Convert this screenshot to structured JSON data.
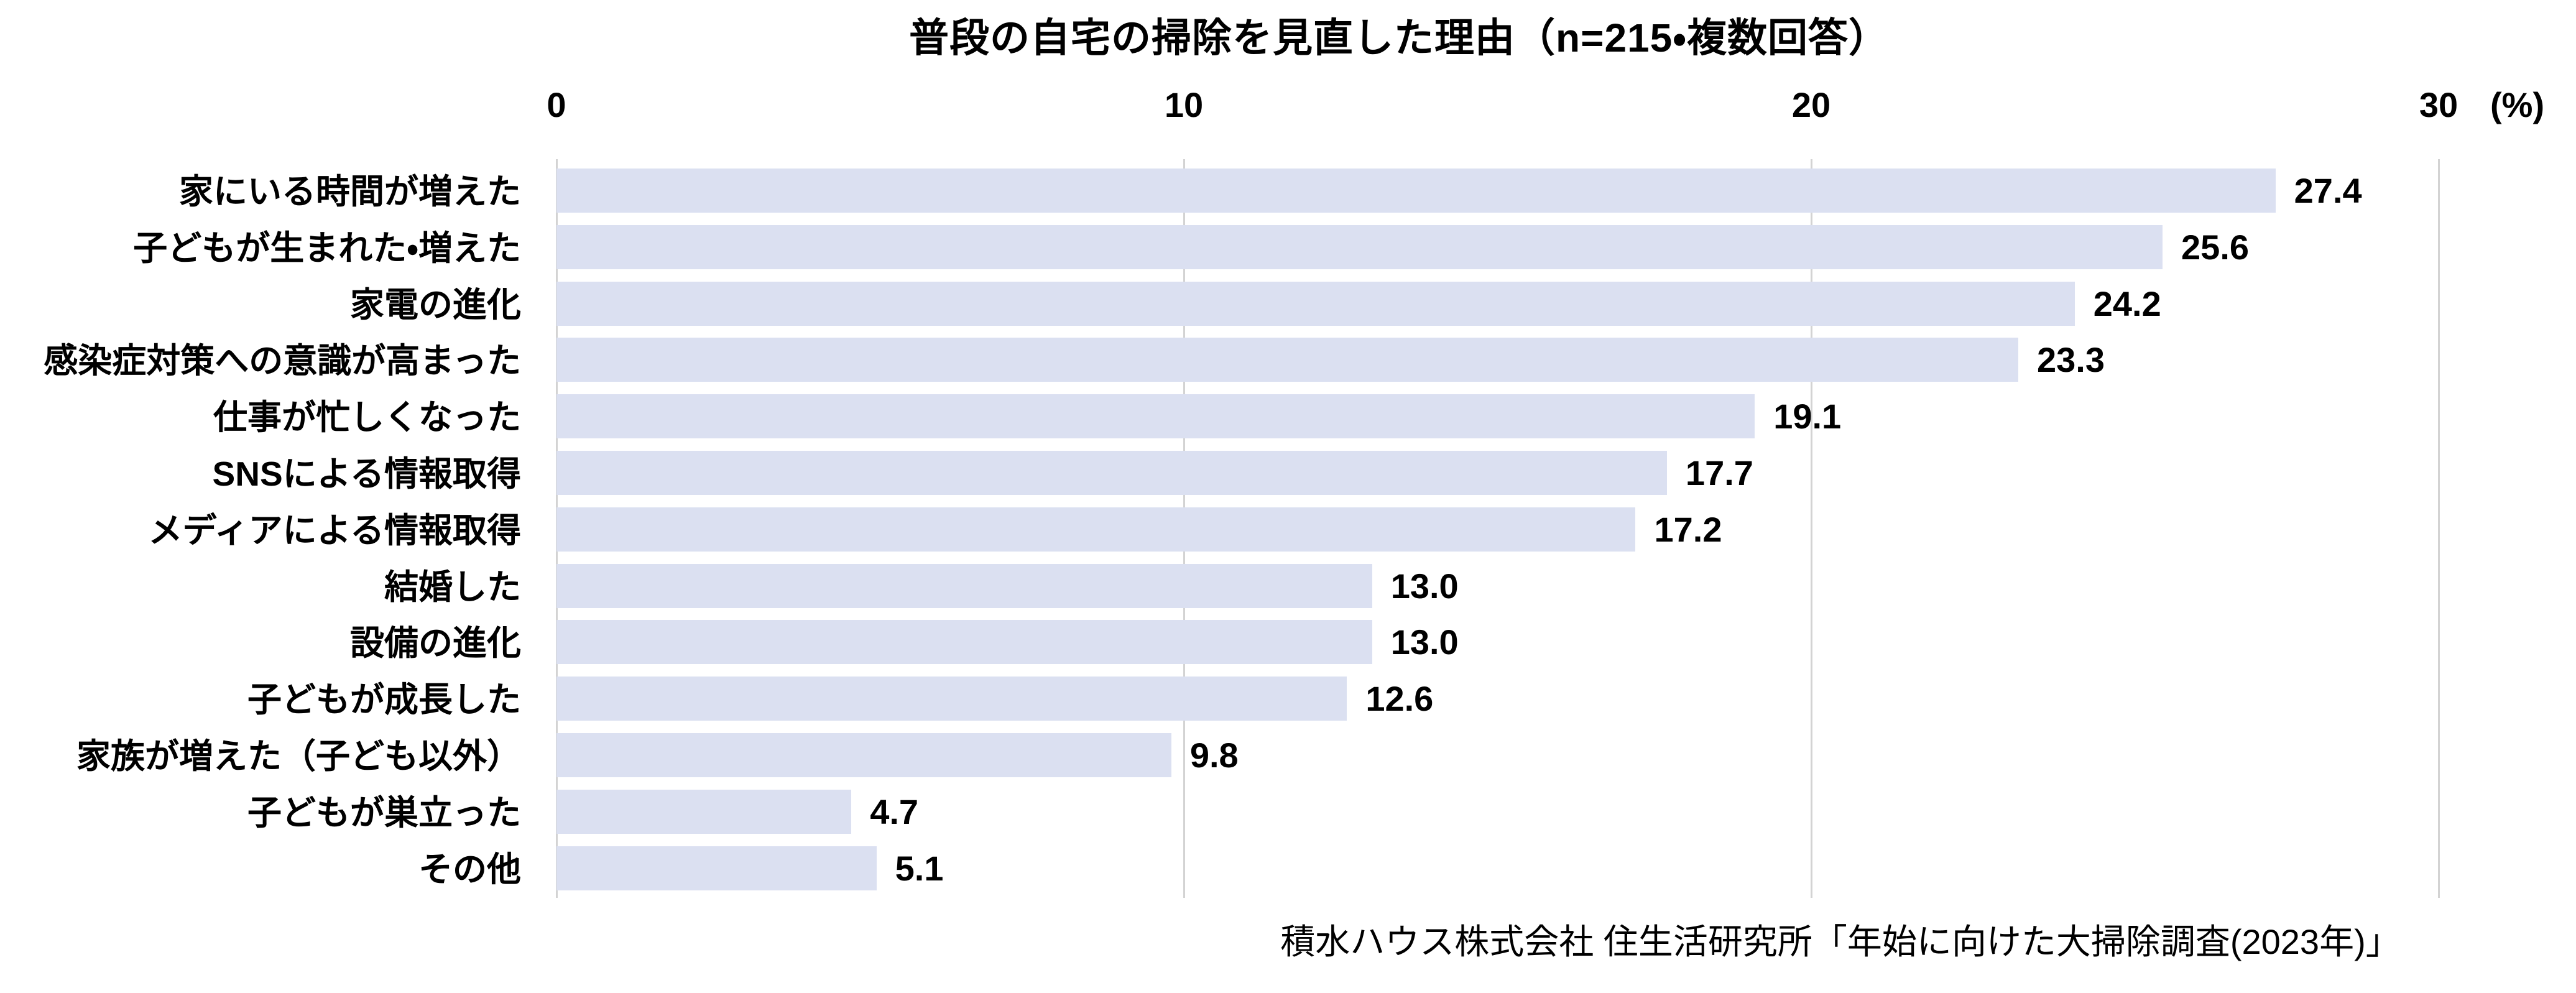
{
  "chart_data": {
    "type": "bar",
    "orientation": "horizontal",
    "title": "普段の自宅の掃除を見直した理由（n=215・複数回答）",
    "categories": [
      "家にいる時間が増えた",
      "子どもが生まれた・増えた",
      "家電の進化",
      "感染症対策への意識が高まった",
      "仕事が忙しくなった",
      "SNSによる情報取得",
      "メディアによる情報取得",
      "結婚した",
      "設備の進化",
      "子どもが成長した",
      "家族が増えた（子ども以外）",
      "子どもが巣立った",
      "その他"
    ],
    "values": [
      27.4,
      25.6,
      24.2,
      23.3,
      19.1,
      17.7,
      17.2,
      13.0,
      13.0,
      12.6,
      9.8,
      4.7,
      5.1
    ],
    "value_decimals": 1,
    "xlim": [
      0,
      30
    ],
    "x_ticks": [
      0,
      10,
      20,
      30
    ],
    "x_unit": "(%)",
    "xlabel": "",
    "ylabel": "",
    "grid": true,
    "legend": "none",
    "source": "積水ハウス株式会社 住生活研究所「年始に向けた大掃除調査(2023年)」"
  },
  "colors": {
    "bar_fill": "#DBE0F1",
    "gridline": "#D3D3D3",
    "text": "#000000",
    "background": "#FFFFFF"
  }
}
